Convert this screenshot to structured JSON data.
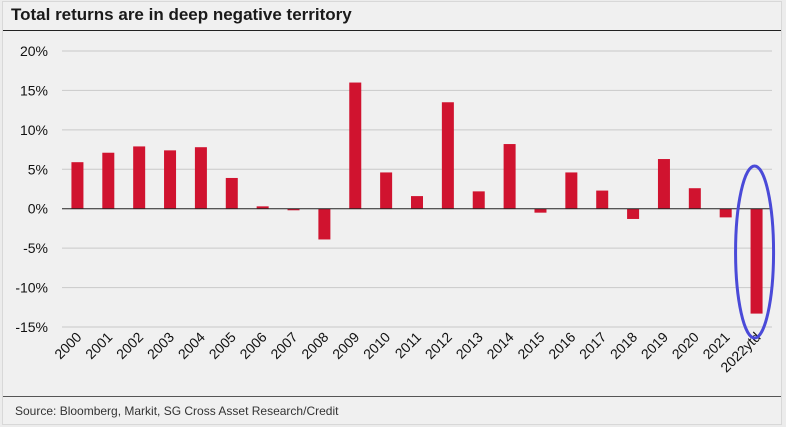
{
  "title": "Total returns are in deep negative territory",
  "source": "Source: Bloomberg, Markit, SG Cross Asset Research/Credit",
  "chart_data": {
    "type": "bar",
    "categories": [
      "2000",
      "2001",
      "2002",
      "2003",
      "2004",
      "2005",
      "2006",
      "2007",
      "2008",
      "2009",
      "2010",
      "2011",
      "2012",
      "2013",
      "2014",
      "2015",
      "2016",
      "2017",
      "2018",
      "2019",
      "2020",
      "2021",
      "2022ytd"
    ],
    "values": [
      5.9,
      7.1,
      7.9,
      7.4,
      7.8,
      3.9,
      0.3,
      -0.2,
      -3.9,
      16.0,
      4.6,
      1.6,
      13.5,
      2.2,
      8.2,
      -0.5,
      4.6,
      2.3,
      -1.3,
      6.3,
      2.6,
      -1.1,
      -13.3
    ],
    "yticks": [
      20,
      15,
      10,
      5,
      0,
      -5,
      -10,
      -15
    ],
    "ytick_labels": [
      "20%",
      "15%",
      "10%",
      "5%",
      "0%",
      "-5%",
      "-10%",
      "-15%"
    ],
    "ylim": [
      -15,
      20
    ],
    "grid": true,
    "bar_color": "#d0132f",
    "highlight": {
      "category": "2022ytd",
      "shape": "ellipse",
      "color": "#4a4ad8"
    }
  }
}
